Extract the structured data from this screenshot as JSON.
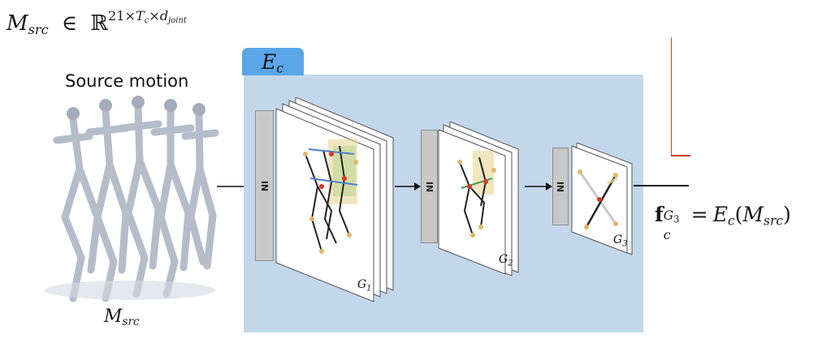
{
  "input_shape": {
    "var": "M",
    "var_sub": "src",
    "in_symbol": "∈",
    "set": "ℝ",
    "dims_a": "21×",
    "dims_t": "T",
    "dims_t_sub": "c",
    "dims_b": "×",
    "dims_d": "d",
    "dims_d_sub": "joint"
  },
  "source": {
    "title": "Source motion",
    "caption_var": "M",
    "caption_sub": "src"
  },
  "encoder": {
    "label": "E",
    "label_sub": "c",
    "stages": [
      {
        "block_label": "IN",
        "layer": "G",
        "layer_sub": "1"
      },
      {
        "block_label": "IN",
        "layer": "G",
        "layer_sub": "2"
      },
      {
        "block_label": "IN",
        "layer": "G",
        "layer_sub": "3"
      }
    ]
  },
  "output": {
    "f": "f",
    "f_sub": "c",
    "f_sup": "G",
    "f_sup_sub": "3",
    "eq": "=",
    "rhs_e": "E",
    "rhs_e_sub": "c",
    "rhs_arg": "M",
    "rhs_arg_sub": "src"
  },
  "colors": {
    "encoder_bg": "#c3d7ea",
    "encoder_tag": "#5aa6e8",
    "skeleton": "#b5bcca",
    "accent_red": "#d33b2c"
  }
}
